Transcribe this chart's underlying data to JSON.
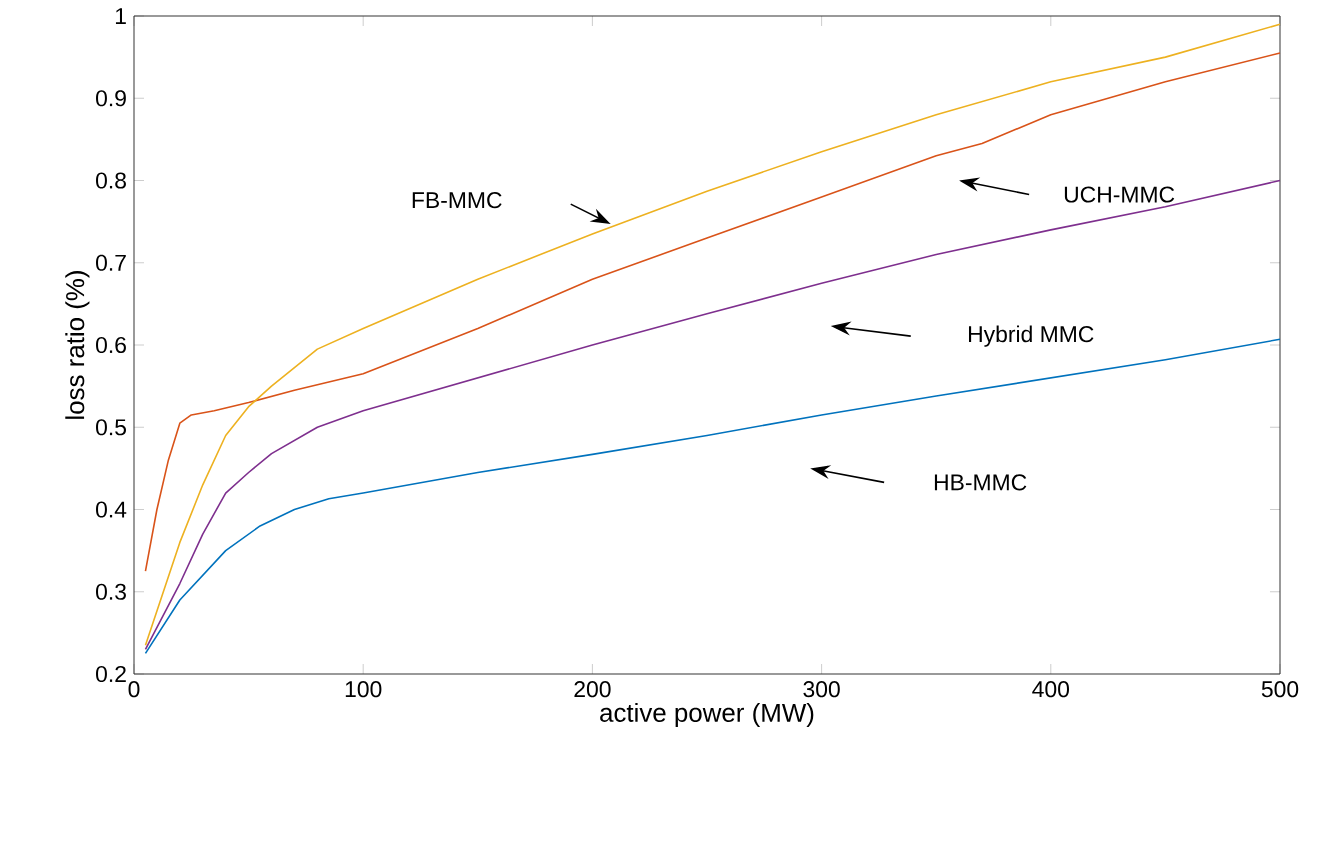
{
  "chart_data": {
    "type": "line",
    "xlabel": "active power (MW)",
    "ylabel": "loss ratio (%)",
    "xlim": [
      0,
      500
    ],
    "ylim": [
      0.2,
      1
    ],
    "xticks": [
      0,
      100,
      200,
      300,
      400,
      500
    ],
    "yticks": [
      0.2,
      0.3,
      0.4,
      0.5,
      0.6,
      0.7,
      0.8,
      0.9,
      1
    ],
    "grid": false,
    "marker": "none",
    "line_style": "solid",
    "series": [
      {
        "color": "#0072bd",
        "x": [
          5,
          20,
          40,
          55,
          70,
          85,
          100,
          150,
          200,
          250,
          300,
          350,
          400,
          450,
          500
        ],
        "values": [
          0.225,
          0.29,
          0.35,
          0.38,
          0.4,
          0.413,
          0.42,
          0.445,
          0.467,
          0.49,
          0.515,
          0.538,
          0.56,
          0.582,
          0.607
        ]
      },
      {
        "color": "#d95319",
        "x": [
          5,
          10,
          15,
          20,
          25,
          35,
          50,
          70,
          100,
          150,
          200,
          250,
          300,
          350,
          370,
          400,
          450,
          500
        ],
        "values": [
          0.325,
          0.4,
          0.46,
          0.505,
          0.515,
          0.52,
          0.53,
          0.545,
          0.565,
          0.62,
          0.68,
          0.73,
          0.78,
          0.83,
          0.845,
          0.88,
          0.92,
          0.955
        ]
      },
      {
        "color": "#edb120",
        "x": [
          5,
          20,
          30,
          40,
          50,
          60,
          80,
          100,
          150,
          200,
          250,
          300,
          350,
          400,
          450,
          500
        ],
        "values": [
          0.235,
          0.36,
          0.43,
          0.49,
          0.525,
          0.55,
          0.595,
          0.62,
          0.68,
          0.735,
          0.787,
          0.835,
          0.88,
          0.92,
          0.95,
          0.99
        ]
      },
      {
        "color": "#7e2f8e",
        "x": [
          5,
          20,
          30,
          40,
          50,
          60,
          80,
          100,
          150,
          200,
          250,
          300,
          350,
          400,
          450,
          500
        ],
        "values": [
          0.23,
          0.31,
          0.37,
          0.42,
          0.445,
          0.468,
          0.5,
          0.52,
          0.56,
          0.6,
          0.638,
          0.675,
          0.71,
          0.74,
          0.768,
          0.8
        ]
      }
    ],
    "annotations": [
      "FB-MMC",
      "UCH-MMC",
      "Hybrid MMC",
      "HB-MMC"
    ]
  }
}
